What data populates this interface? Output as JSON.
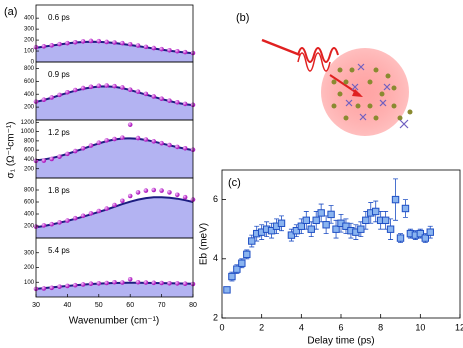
{
  "figure": {
    "panel_a": "(a)",
    "panel_b": "(b)",
    "x_label": "Wavenumber (cm⁻¹)",
    "y_label": "σ₁ (Ω⁻¹cm⁻¹)"
  },
  "chart_data": [
    {
      "type": "line",
      "annotation": "0.6 ps",
      "xlim": [
        30,
        80
      ],
      "ylim": [
        0,
        520
      ],
      "yticks": [
        0,
        100,
        200,
        300,
        400
      ],
      "x": [
        30,
        32.5,
        35,
        37.5,
        40,
        42.5,
        45,
        47.5,
        50,
        52.5,
        55,
        57.5,
        60,
        62.5,
        65,
        67.5,
        70,
        72.5,
        75,
        77.5,
        80
      ],
      "series": [
        {
          "color": "#1c1c80",
          "fill": "#b3b3f2",
          "values": [
            130,
            140,
            150,
            160,
            170,
            178,
            183,
            185,
            184,
            180,
            173,
            164,
            155,
            145,
            134,
            123,
            113,
            103,
            95,
            87,
            80
          ]
        }
      ],
      "points": {
        "color": "#c030c8",
        "values": [
          135,
          143,
          152,
          163,
          172,
          180,
          188,
          192,
          190,
          183,
          178,
          172,
          162,
          150,
          138,
          127,
          117,
          107,
          98,
          90,
          82
        ]
      }
    },
    {
      "type": "line",
      "annotation": "0.9 ps",
      "xlim": [
        30,
        80
      ],
      "ylim": [
        0,
        900
      ],
      "yticks": [
        200,
        400,
        600,
        800
      ],
      "x": [
        30,
        32.5,
        35,
        37.5,
        40,
        42.5,
        45,
        47.5,
        50,
        52.5,
        55,
        57.5,
        60,
        62.5,
        65,
        67.5,
        70,
        72.5,
        75,
        77.5,
        80
      ],
      "series": [
        {
          "color": "#1c1c80",
          "fill": "#b3b3f2",
          "values": [
            280,
            310,
            345,
            385,
            420,
            455,
            485,
            505,
            520,
            522,
            515,
            495,
            465,
            430,
            395,
            360,
            325,
            295,
            265,
            245,
            230
          ]
        }
      ],
      "points": {
        "color": "#c030c8",
        "values": [
          285,
          315,
          350,
          390,
          430,
          465,
          495,
          515,
          530,
          535,
          525,
          505,
          470,
          440,
          405,
          365,
          330,
          300,
          275,
          250,
          235
        ]
      }
    },
    {
      "type": "line",
      "annotation": "1.2 ps",
      "xlim": [
        30,
        80
      ],
      "ylim": [
        0,
        1250
      ],
      "yticks": [
        200,
        400,
        600,
        800,
        1000,
        1200
      ],
      "x": [
        30,
        32.5,
        35,
        37.5,
        40,
        42.5,
        45,
        47.5,
        50,
        52.5,
        55,
        57.5,
        60,
        62.5,
        65,
        67.5,
        70,
        72.5,
        75,
        77.5,
        80
      ],
      "series": [
        {
          "color": "#1c1c80",
          "fill": "#b3b3f2",
          "values": [
            380,
            400,
            430,
            470,
            520,
            575,
            630,
            690,
            745,
            795,
            830,
            850,
            855,
            845,
            820,
            785,
            745,
            705,
            665,
            630,
            600
          ]
        }
      ],
      "points": {
        "color": "#c030c8",
        "values": [
          370,
          375,
          410,
          460,
          520,
          580,
          640,
          700,
          760,
          810,
          840,
          870,
          1150,
          860,
          830,
          790,
          750,
          710,
          670,
          640,
          610
        ]
      }
    },
    {
      "type": "line",
      "annotation": "1.8 ps",
      "xlim": [
        30,
        80
      ],
      "ylim": [
        0,
        1000
      ],
      "yticks": [
        200,
        400,
        600,
        800
      ],
      "x": [
        30,
        32.5,
        35,
        37.5,
        40,
        42.5,
        45,
        47.5,
        50,
        52.5,
        55,
        57.5,
        60,
        62.5,
        65,
        67.5,
        70,
        72.5,
        75,
        77.5,
        80
      ],
      "series": [
        {
          "color": "#1c1c80",
          "fill": "#b3b3f2",
          "values": [
            180,
            200,
            225,
            255,
            285,
            320,
            355,
            395,
            435,
            475,
            520,
            565,
            605,
            640,
            665,
            680,
            680,
            670,
            655,
            630,
            600
          ]
        }
      ],
      "points": {
        "color": "#c030c8",
        "values": [
          190,
          210,
          230,
          260,
          290,
          330,
          370,
          410,
          450,
          490,
          550,
          620,
          700,
          760,
          790,
          800,
          790,
          760,
          720,
          680,
          640
        ]
      }
    },
    {
      "type": "line",
      "annotation": "5.4 ps",
      "xlim": [
        30,
        80
      ],
      "ylim": [
        0,
        400
      ],
      "yticks": [
        100,
        200,
        300
      ],
      "xticks": [
        30,
        40,
        50,
        60,
        70,
        80
      ],
      "x": [
        30,
        32.5,
        35,
        37.5,
        40,
        42.5,
        45,
        47.5,
        50,
        52.5,
        55,
        57.5,
        60,
        62.5,
        65,
        67.5,
        70,
        72.5,
        75,
        77.5,
        80
      ],
      "series": [
        {
          "color": "#1c1c80",
          "fill": "#b3b3f2",
          "values": [
            55,
            60,
            65,
            70,
            75,
            80,
            84,
            88,
            91,
            93,
            95,
            96,
            97,
            97,
            96,
            95,
            94,
            93,
            92,
            91,
            90
          ]
        }
      ],
      "points": {
        "color": "#c030c8",
        "values": [
          55,
          58,
          62,
          70,
          75,
          80,
          85,
          90,
          92,
          95,
          100,
          98,
          120,
          100,
          98,
          96,
          95,
          93,
          92,
          90,
          88
        ]
      }
    },
    {
      "type": "scatter",
      "annotation": "(c)",
      "xlabel": "Delay time (ps)",
      "ylabel": "Eb (meV)",
      "xlim": [
        0,
        12
      ],
      "ylim": [
        2,
        7
      ],
      "xticks": [
        0,
        2,
        4,
        6,
        8,
        10,
        12
      ],
      "yticks": [
        2,
        4,
        6
      ],
      "color": "#8ab4f0",
      "edge": "#1f4fc4",
      "x": [
        0.25,
        0.5,
        0.75,
        1,
        1.25,
        1.5,
        1.75,
        2,
        2.25,
        2.5,
        2.75,
        3,
        3.5,
        3.75,
        4,
        4.25,
        4.5,
        4.75,
        5,
        5.25,
        5.5,
        5.75,
        6,
        6.25,
        6.5,
        6.75,
        7,
        7.25,
        7.5,
        7.75,
        8,
        8.25,
        8.5,
        8.75,
        9,
        9.25,
        9.5,
        9.75,
        10,
        10.25,
        10.5
      ],
      "values": [
        2.95,
        3.4,
        3.65,
        3.85,
        4.15,
        4.6,
        4.85,
        4.9,
        5.0,
        4.95,
        5.1,
        5.2,
        4.8,
        4.95,
        5.1,
        5.3,
        5.0,
        5.3,
        5.55,
        5.15,
        5.5,
        5.0,
        5.2,
        5.1,
        4.95,
        4.9,
        5.0,
        5.3,
        5.55,
        5.6,
        5.3,
        5.3,
        5.0,
        6.0,
        4.7,
        5.7,
        4.85,
        4.8,
        4.85,
        4.7,
        4.9
      ],
      "errors": [
        0.1,
        0.15,
        0.15,
        0.15,
        0.15,
        0.2,
        0.25,
        0.25,
        0.25,
        0.25,
        0.25,
        0.25,
        0.2,
        0.2,
        0.25,
        0.3,
        0.25,
        0.3,
        0.3,
        0.3,
        0.3,
        0.3,
        0.3,
        0.25,
        0.25,
        0.25,
        0.25,
        0.3,
        0.35,
        0.35,
        0.3,
        0.3,
        0.35,
        0.7,
        0.15,
        0.3,
        0.15,
        0.15,
        0.15,
        0.15,
        0.2
      ]
    }
  ]
}
